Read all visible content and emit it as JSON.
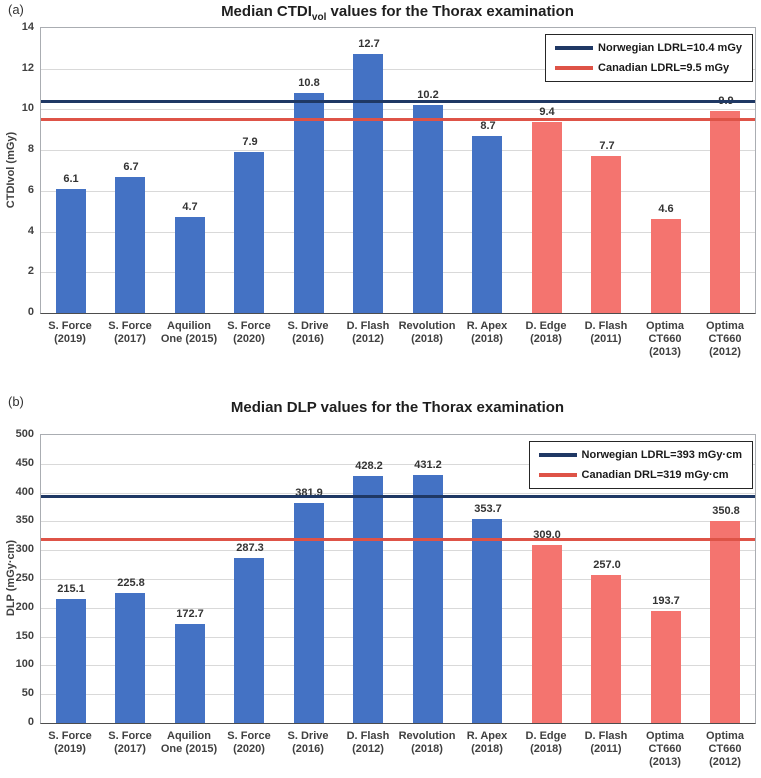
{
  "colors": {
    "bar_blue": "#4472C4",
    "bar_pink": "#F4746F",
    "norwegian_line": "#1F3864",
    "canadian_line": "#DE5347",
    "gridline": "#D9D9D9",
    "text": "#404040"
  },
  "chart_data": [
    {
      "type": "bar",
      "panel": "(a)",
      "title_prefix": "Median CTDI",
      "title_sub": "vol",
      "title_suffix": " values for the Thorax examination",
      "ylabel": "CTDIvol (mGy)",
      "ylim": [
        0,
        14
      ],
      "yticks": [
        0,
        2,
        4,
        6,
        8,
        10,
        12,
        14
      ],
      "grid": true,
      "legend_position": "top-right",
      "categories": [
        "S. Force (2019)",
        "S. Force (2017)",
        "Aquilion One (2015)",
        "S. Force (2020)",
        "S. Drive (2016)",
        "D. Flash (2012)",
        "Revolution (2018)",
        "R. Apex (2018)",
        "D. Edge (2018)",
        "D. Flash (2011)",
        "Optima CT660 (2013)",
        "Optima CT660 (2012)"
      ],
      "category_lines": [
        [
          "S. Force",
          "(2019)"
        ],
        [
          "S. Force",
          "(2017)"
        ],
        [
          "Aquilion",
          "One (2015)"
        ],
        [
          "S. Force",
          "(2020)"
        ],
        [
          "S. Drive",
          "(2016)"
        ],
        [
          "D. Flash",
          "(2012)"
        ],
        [
          "Revolution",
          "(2018)"
        ],
        [
          "R. Apex",
          "(2018)"
        ],
        [
          "D. Edge",
          "(2018)"
        ],
        [
          "D. Flash",
          "(2011)"
        ],
        [
          "Optima",
          "CT660",
          "(2013)"
        ],
        [
          "Optima",
          "CT660",
          "(2012)"
        ]
      ],
      "values": [
        6.1,
        6.7,
        4.7,
        7.9,
        10.8,
        12.7,
        10.2,
        8.7,
        9.4,
        7.7,
        4.6,
        9.9
      ],
      "value_labels": [
        "6.1",
        "6.7",
        "4.7",
        "7.9",
        "10.8",
        "12.7",
        "10.2",
        "8.7",
        "9.4",
        "7.7",
        "4.6",
        "9.9"
      ],
      "bar_color_keys": [
        "blue",
        "blue",
        "blue",
        "blue",
        "blue",
        "blue",
        "blue",
        "blue",
        "pink",
        "pink",
        "pink",
        "pink"
      ],
      "ref_lines": [
        {
          "name": "norwegian",
          "label": "Norwegian LDRL=10.4 mGy",
          "value": 10.4,
          "color_key": "norwegian_line"
        },
        {
          "name": "canadian",
          "label": "Canadian LDRL=9.5 mGy",
          "value": 9.5,
          "color_key": "canadian_line"
        }
      ]
    },
    {
      "type": "bar",
      "panel": "(b)",
      "title_prefix": "Median DLP values for the Thorax examination",
      "title_sub": "",
      "title_suffix": "",
      "ylabel": "DLP (mGy·cm)",
      "ylim": [
        0,
        500
      ],
      "yticks": [
        0,
        50,
        100,
        150,
        200,
        250,
        300,
        350,
        400,
        450,
        500
      ],
      "grid": true,
      "legend_position": "top-right",
      "categories": [
        "S. Force (2019)",
        "S. Force (2017)",
        "Aquilion One (2015)",
        "S. Force (2020)",
        "S. Drive (2016)",
        "D. Flash (2012)",
        "Revolution (2018)",
        "R. Apex (2018)",
        "D. Edge (2018)",
        "D. Flash (2011)",
        "Optima CT660 (2013)",
        "Optima CT660 (2012)"
      ],
      "category_lines": [
        [
          "S. Force",
          "(2019)"
        ],
        [
          "S. Force",
          "(2017)"
        ],
        [
          "Aquilion",
          "One (2015)"
        ],
        [
          "S. Force",
          "(2020)"
        ],
        [
          "S. Drive",
          "(2016)"
        ],
        [
          "D. Flash",
          "(2012)"
        ],
        [
          "Revolution",
          "(2018)"
        ],
        [
          "R. Apex",
          "(2018)"
        ],
        [
          "D. Edge",
          "(2018)"
        ],
        [
          "D. Flash",
          "(2011)"
        ],
        [
          "Optima",
          "CT660",
          "(2013)"
        ],
        [
          "Optima",
          "CT660",
          "(2012)"
        ]
      ],
      "values": [
        215.1,
        225.8,
        172.7,
        287.3,
        381.9,
        428.2,
        431.2,
        353.7,
        309.0,
        257.0,
        193.7,
        350.8
      ],
      "value_labels": [
        "215.1",
        "225.8",
        "172.7",
        "287.3",
        "381.9",
        "428.2",
        "431.2",
        "353.7",
        "309.0",
        "257.0",
        "193.7",
        "350.8"
      ],
      "bar_color_keys": [
        "blue",
        "blue",
        "blue",
        "blue",
        "blue",
        "blue",
        "blue",
        "blue",
        "pink",
        "pink",
        "pink",
        "pink"
      ],
      "ref_lines": [
        {
          "name": "norwegian",
          "label": "Norwegian LDRL=393 mGy·cm",
          "value": 393,
          "color_key": "norwegian_line"
        },
        {
          "name": "canadian",
          "label": "Canadian DRL=319 mGy·cm",
          "value": 319,
          "color_key": "canadian_line"
        }
      ]
    }
  ]
}
